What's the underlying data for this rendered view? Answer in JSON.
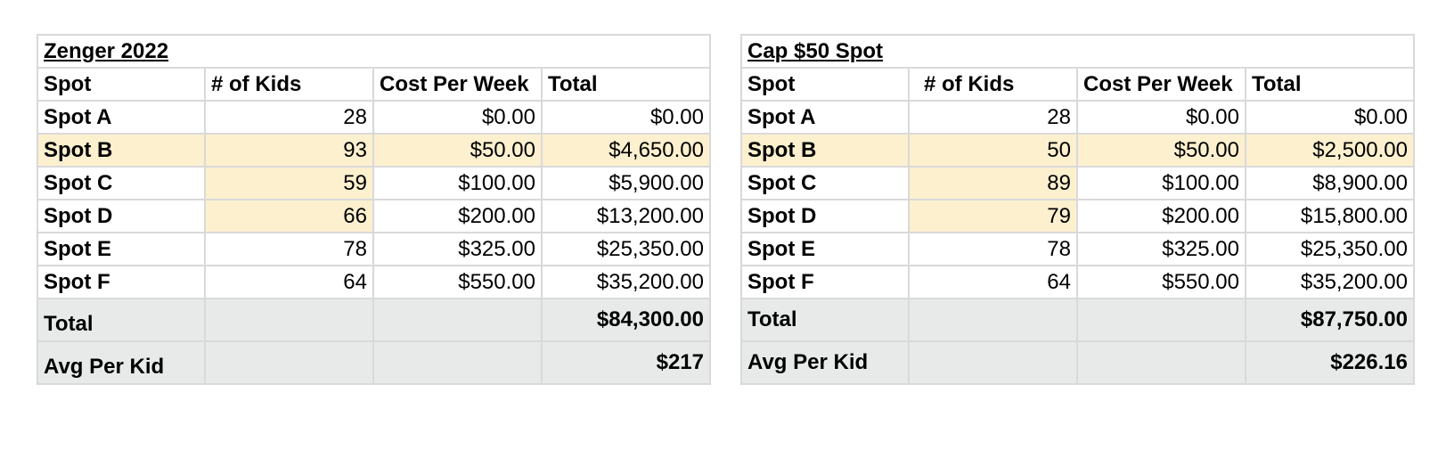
{
  "colors": {
    "highlight": "#fcf0cf",
    "summary_bg": "#e8eaea",
    "grid": "#d9d9d9"
  },
  "tables": [
    {
      "title": "Zenger 2022",
      "headers": [
        "Spot",
        "# of Kids",
        "Cost Per Week",
        "Total"
      ],
      "rows": [
        {
          "spot": "Spot A",
          "kids": "28",
          "cost": "$0.00",
          "total": "$0.00"
        },
        {
          "spot": "Spot B",
          "kids": "93",
          "cost": "$50.00",
          "total": "$4,650.00"
        },
        {
          "spot": "Spot C",
          "kids": "59",
          "cost": "$100.00",
          "total": "$5,900.00"
        },
        {
          "spot": "Spot D",
          "kids": "66",
          "cost": "$200.00",
          "total": "$13,200.00"
        },
        {
          "spot": "Spot E",
          "kids": "78",
          "cost": "$325.00",
          "total": "$25,350.00"
        },
        {
          "spot": "Spot F",
          "kids": "64",
          "cost": "$550.00",
          "total": "$35,200.00"
        }
      ],
      "total_label": "Total",
      "total_value": "$84,300.00",
      "avg_label": "Avg Per Kid",
      "avg_value": "$217"
    },
    {
      "title": "Cap $50 Spot",
      "headers": [
        "Spot",
        "# of Kids",
        "Cost Per Week",
        "Total"
      ],
      "rows": [
        {
          "spot": "Spot A",
          "kids": "28",
          "cost": "$0.00",
          "total": "$0.00"
        },
        {
          "spot": "Spot B",
          "kids": "50",
          "cost": "$50.00",
          "total": "$2,500.00"
        },
        {
          "spot": "Spot C",
          "kids": "89",
          "cost": "$100.00",
          "total": "$8,900.00"
        },
        {
          "spot": "Spot D",
          "kids": "79",
          "cost": "$200.00",
          "total": "$15,800.00"
        },
        {
          "spot": "Spot E",
          "kids": "78",
          "cost": "$325.00",
          "total": "$25,350.00"
        },
        {
          "spot": "Spot F",
          "kids": "64",
          "cost": "$550.00",
          "total": "$35,200.00"
        }
      ],
      "total_label": "Total",
      "total_value": "$87,750.00",
      "avg_label": "Avg Per Kid",
      "avg_value": "$226.16"
    }
  ]
}
